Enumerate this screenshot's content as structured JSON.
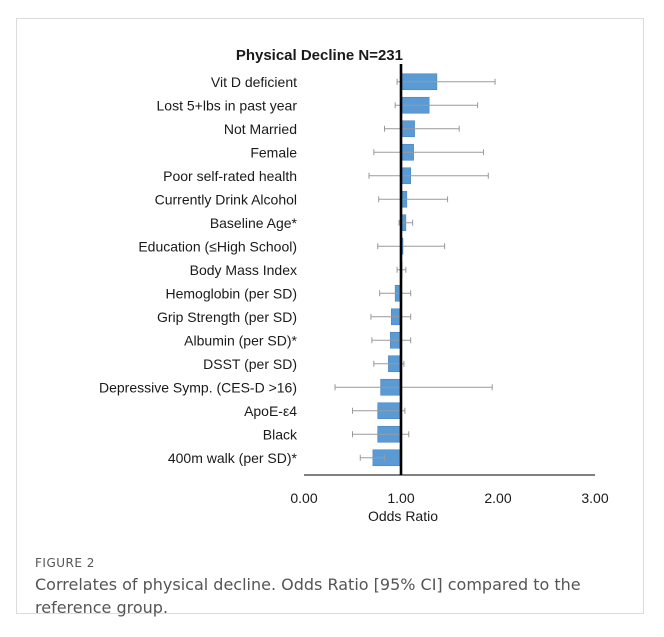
{
  "figure": {
    "label": "FIGURE 2",
    "caption": "Correlates of physical decline. Odds Ratio [95% CI] compared to the reference group."
  },
  "chart_data": {
    "type": "bar",
    "title": "Physical Decline N=231",
    "xlabel": "Odds Ratio",
    "xlim": [
      0,
      3
    ],
    "xticks": [
      "0.00",
      "1.00",
      "2.00",
      "3.00"
    ],
    "reference_line": 1.0,
    "bar_color": "#5b9bd5",
    "categories": [
      "Vit D deficient",
      "Lost 5+lbs in past year",
      "Not Married",
      "Female",
      "Poor self-rated health",
      "Currently Drink Alcohol",
      "Baseline Age*",
      "Education (≤High School)",
      "Body Mass Index",
      "Hemoglobin (per SD)",
      "Grip Strength (per SD)",
      "Albumin (per SD)*",
      "DSST (per SD)",
      "Depressive Symp. (CES-D >16)",
      "ApoE-ε4",
      "Black",
      "400m walk (per SD)*"
    ],
    "values": [
      1.37,
      1.29,
      1.14,
      1.13,
      1.1,
      1.06,
      1.05,
      1.02,
      1.01,
      0.94,
      0.9,
      0.89,
      0.87,
      0.79,
      0.76,
      0.76,
      0.71
    ],
    "ci_lower": [
      0.96,
      0.94,
      0.83,
      0.72,
      0.67,
      0.77,
      0.98,
      0.76,
      0.96,
      0.78,
      0.69,
      0.7,
      0.72,
      0.32,
      0.5,
      0.5,
      0.58
    ],
    "ci_upper": [
      1.97,
      1.79,
      1.6,
      1.85,
      1.9,
      1.48,
      1.12,
      1.45,
      1.05,
      1.1,
      1.1,
      1.1,
      1.03,
      1.94,
      1.04,
      1.08,
      0.83
    ]
  }
}
